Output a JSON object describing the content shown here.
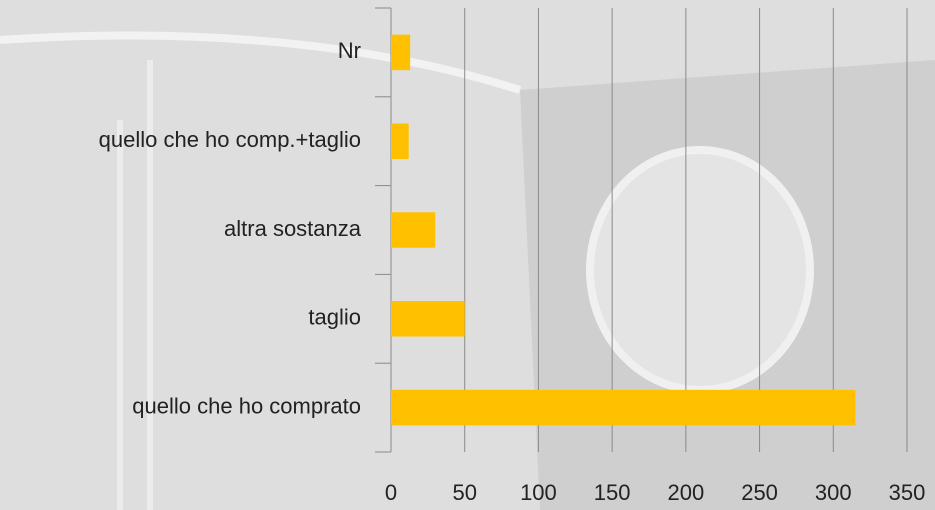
{
  "chart_data": {
    "type": "bar",
    "orientation": "horizontal",
    "categories": [
      "Nr",
      "quello che ho comp.+taglio",
      "altra sostanza",
      "taglio",
      "quello che ho comprato"
    ],
    "values": [
      13,
      12,
      30,
      50,
      315
    ],
    "color": "#ffc000",
    "xlim": [
      0,
      350
    ],
    "xticks": [
      0,
      50,
      100,
      150,
      200,
      250,
      300,
      350
    ],
    "grid": true
  }
}
